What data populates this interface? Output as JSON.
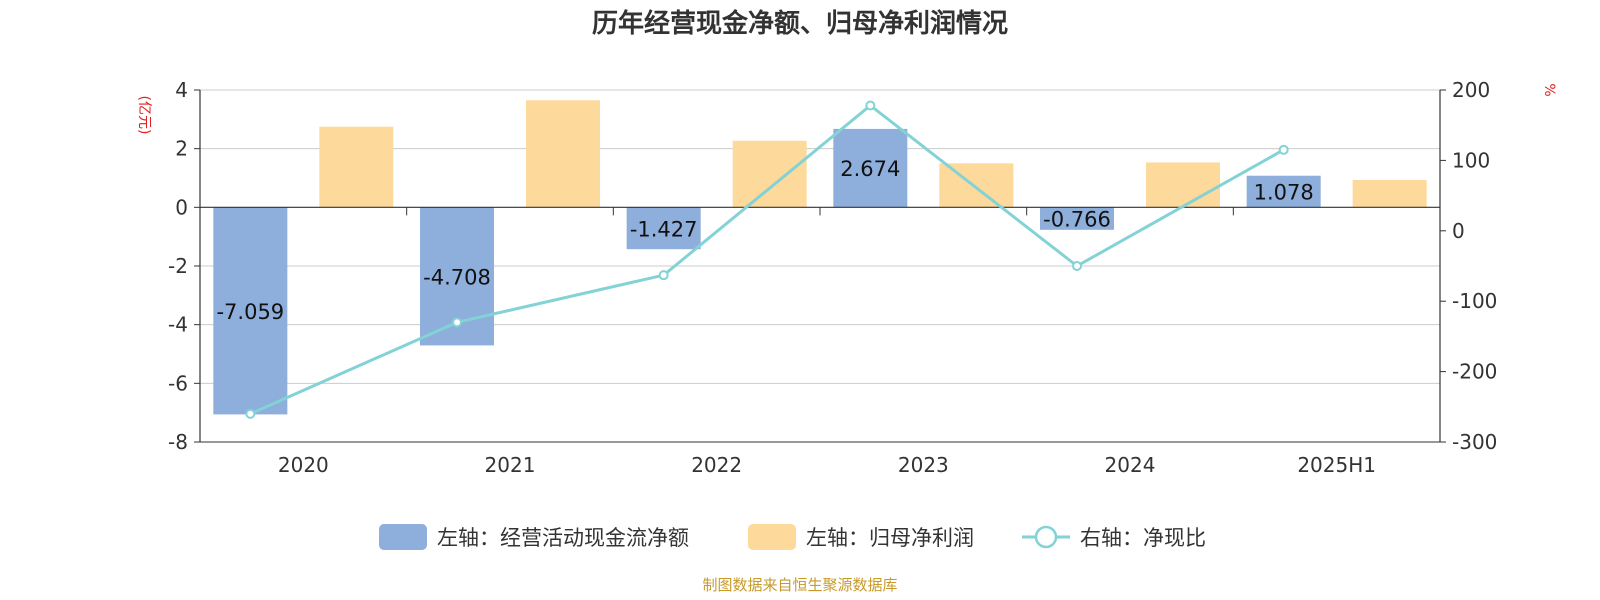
{
  "chart_data": {
    "type": "bar",
    "title": "历年经营现金净额、归母净利润情况",
    "categories": [
      "2020",
      "2021",
      "2022",
      "2023",
      "2024",
      "2025H1"
    ],
    "left_axis": {
      "unit": "(亿元)",
      "ylim": [
        -8,
        4
      ],
      "ticks": [
        4,
        2,
        0,
        -2,
        -4,
        -6,
        -8
      ]
    },
    "right_axis": {
      "unit": "%",
      "ylim": [
        -300,
        200
      ],
      "ticks": [
        200,
        100,
        0,
        -100,
        -200,
        -300
      ]
    },
    "grid": true,
    "legend_position": "bottom",
    "series": [
      {
        "name": "左轴：经营活动现金流净额",
        "type": "bar",
        "axis": "left",
        "color": "#8eaedb",
        "values": [
          -7.059,
          -4.708,
          -1.427,
          2.674,
          -0.766,
          1.078
        ],
        "labels": [
          "-7.059",
          "-4.708",
          "-1.427",
          "2.674",
          "-0.766",
          "1.078"
        ]
      },
      {
        "name": "左轴：归母净利润",
        "type": "bar",
        "axis": "left",
        "color": "#fdd99b",
        "values": [
          2.75,
          3.65,
          2.27,
          1.5,
          1.53,
          0.93
        ]
      },
      {
        "name": "右轴：净现比",
        "type": "line",
        "axis": "right",
        "color": "#82d2d6",
        "values": [
          -260,
          -130,
          -63,
          178,
          -50,
          115
        ]
      }
    ]
  },
  "source": "制图数据来自恒生聚源数据库"
}
